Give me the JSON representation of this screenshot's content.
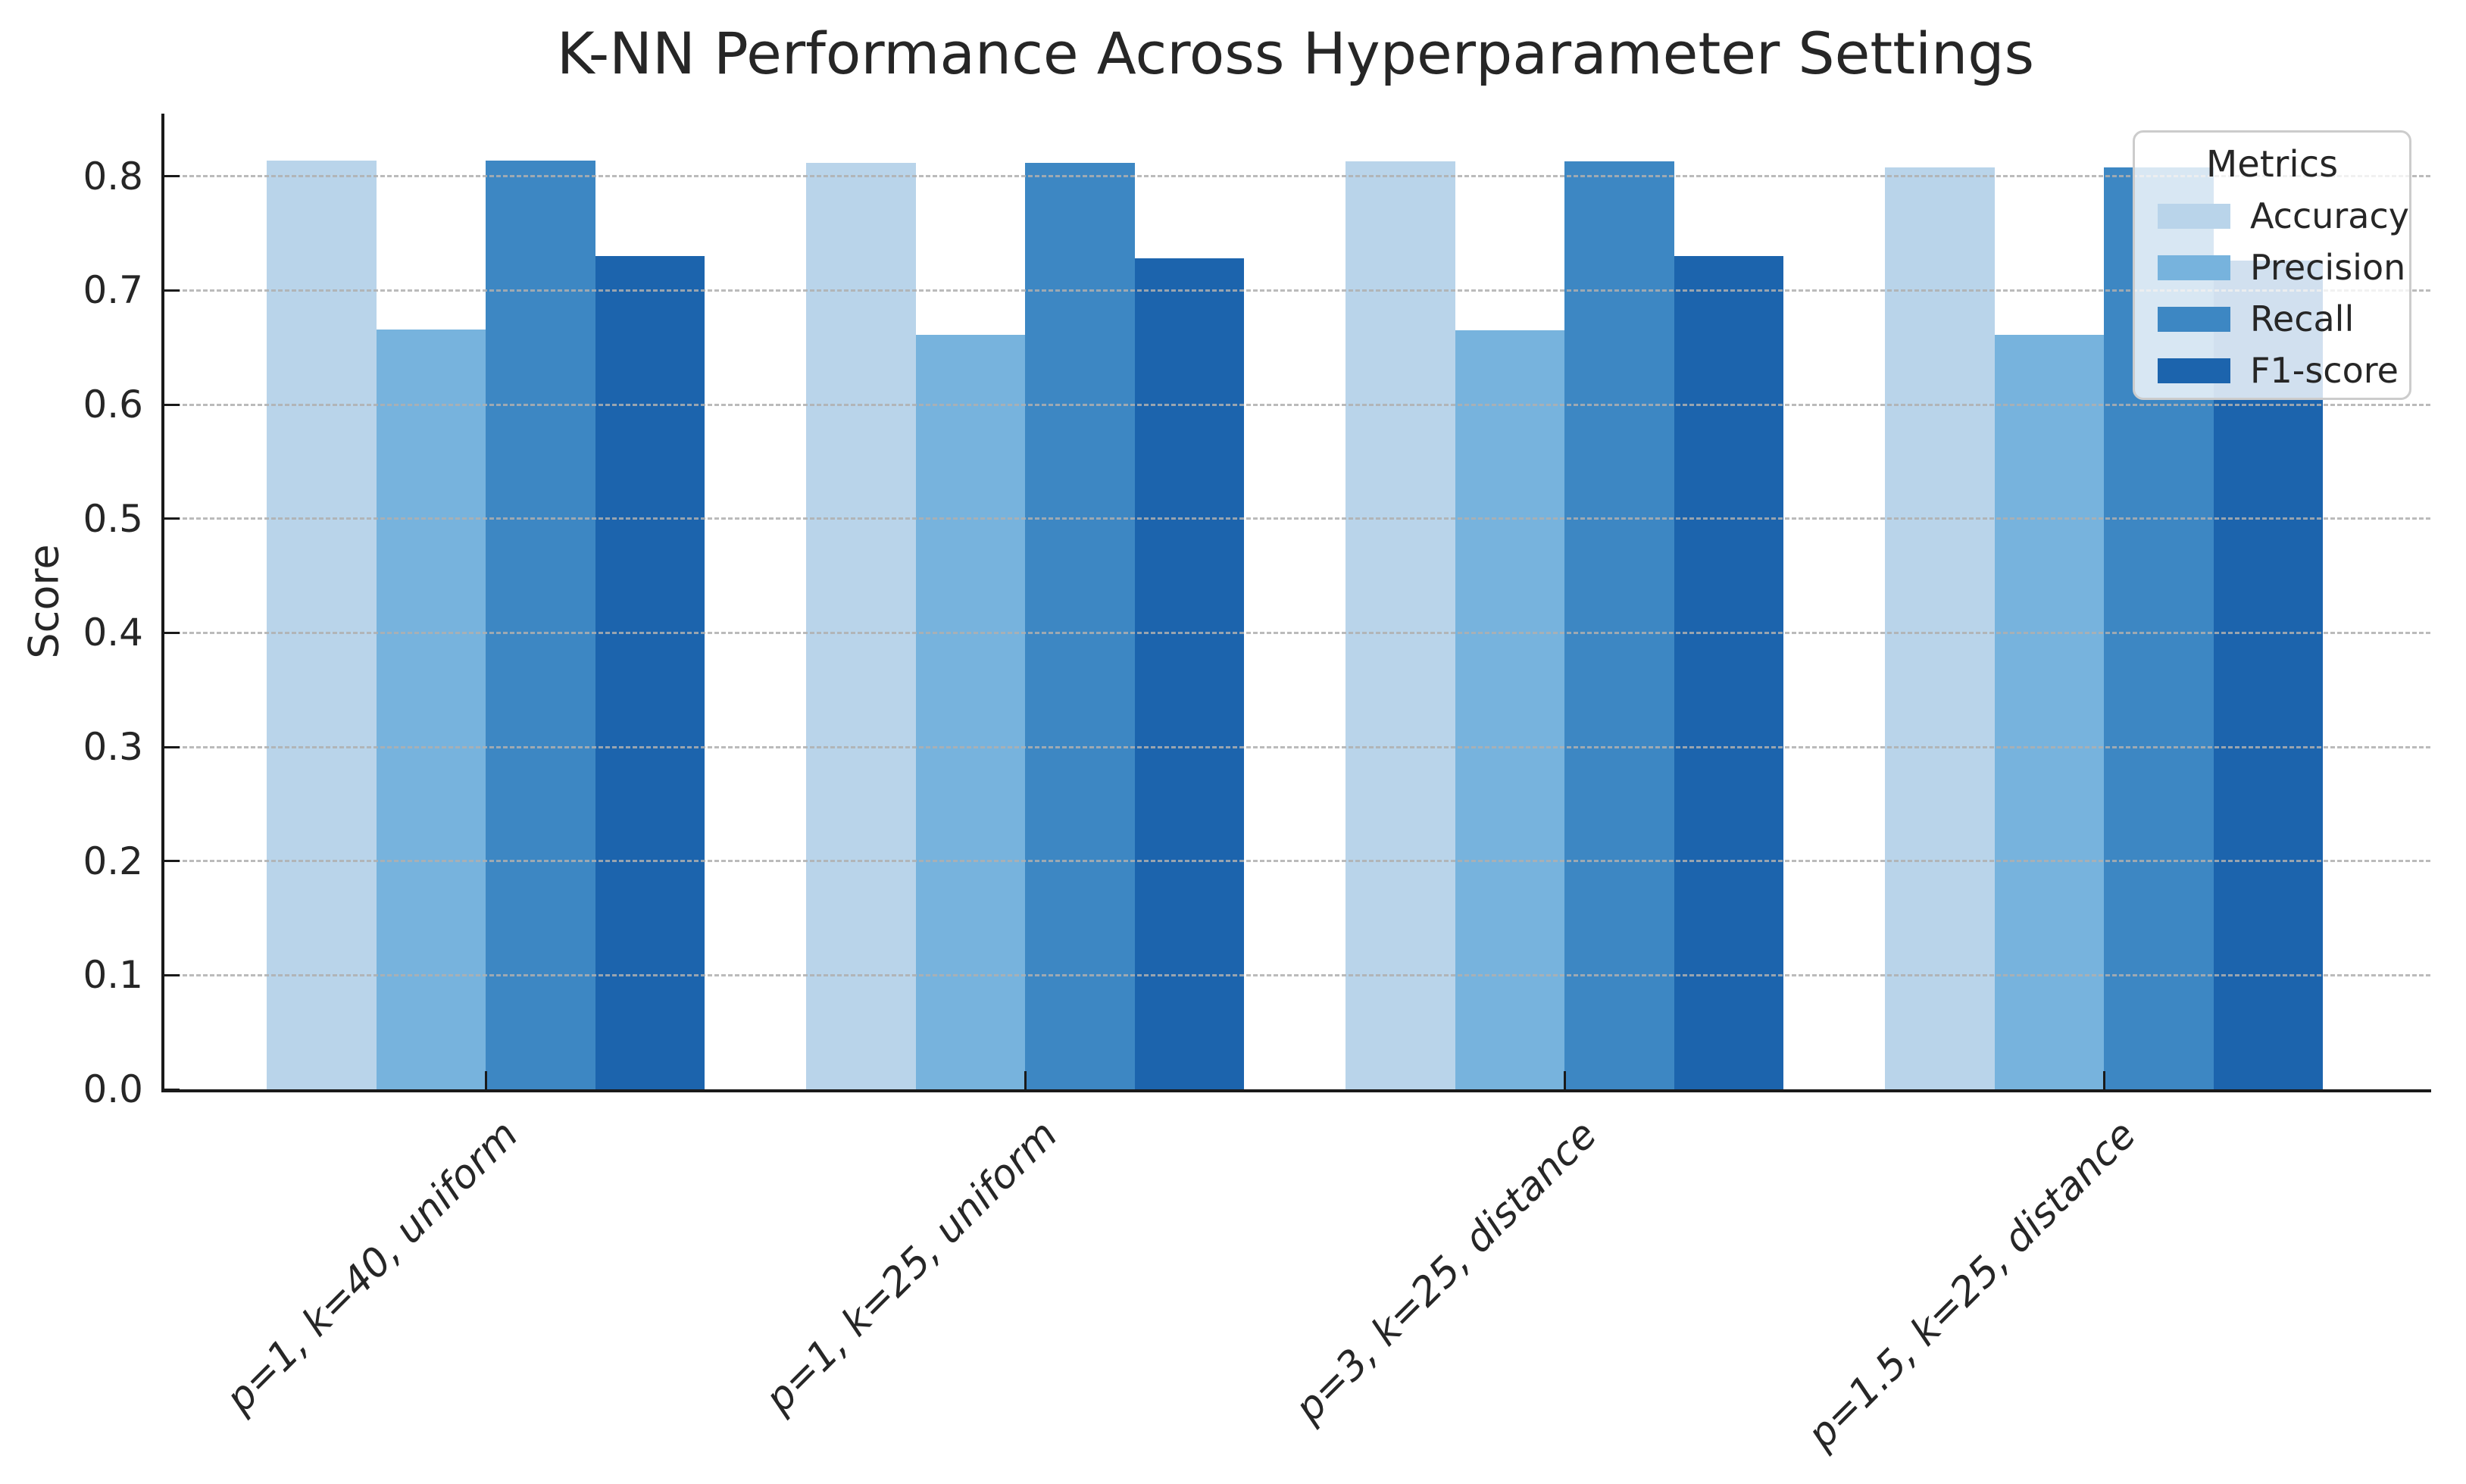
{
  "figure": {
    "title": "K-NN Performance Across Hyperparameter Settings"
  },
  "chart_data": {
    "type": "bar",
    "title": "K-NN Performance Across Hyperparameter Settings",
    "xlabel": "",
    "ylabel": "Score",
    "legend_title": "Metrics",
    "legend_position": "upper right",
    "grid": "horizontal dashed, drawn above bars",
    "categories": [
      "p=1, k=40, uniform",
      "p=1, k=25, uniform",
      "p=3, k=25, distance",
      "p=1.5, k=25, distance"
    ],
    "series": [
      {
        "name": "Accuracy",
        "color": "#b9d4ea",
        "values": [
          0.814,
          0.812,
          0.813,
          0.808
        ]
      },
      {
        "name": "Precision",
        "color": "#77b3dd",
        "values": [
          0.666,
          0.661,
          0.665,
          0.661
        ]
      },
      {
        "name": "Recall",
        "color": "#3d87c3",
        "values": [
          0.814,
          0.812,
          0.813,
          0.808
        ]
      },
      {
        "name": "F1-score",
        "color": "#1c64ad",
        "values": [
          0.73,
          0.728,
          0.73,
          0.726
        ]
      }
    ],
    "ylim": [
      0.0,
      0.855
    ],
    "yticks": [
      0.0,
      0.1,
      0.2,
      0.3,
      0.4,
      0.5,
      0.6,
      0.7,
      0.8
    ],
    "xtick_style": "italic, rotated 45deg, right-anchored",
    "colors": {
      "text": "#262626",
      "spine": "#1a1a1a",
      "gridline": "#afafaf",
      "legend_border": "#cccccc",
      "legend_background": "rgba(255,255,255,0.8)"
    }
  }
}
